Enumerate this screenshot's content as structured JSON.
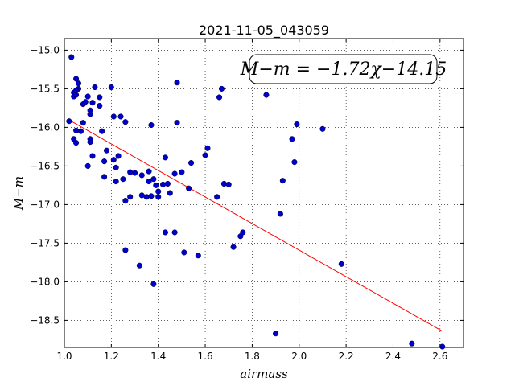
{
  "chart_data": {
    "type": "scatter",
    "title": "2021-11-05_043059",
    "xlabel": "airmass",
    "ylabel": "M−m",
    "xlim": [
      1.0,
      2.7
    ],
    "ylim": [
      -18.85,
      -14.85
    ],
    "xticks": [
      1.0,
      1.2,
      1.4,
      1.6,
      1.8,
      2.0,
      2.2,
      2.4,
      2.6
    ],
    "xtick_labels": [
      "1.0",
      "1.2",
      "1.4",
      "1.6",
      "1.8",
      "2.0",
      "2.2",
      "2.4",
      "2.6"
    ],
    "yticks": [
      -15.0,
      -15.5,
      -16.0,
      -16.5,
      -17.0,
      -17.5,
      -18.0,
      -18.5
    ],
    "ytick_labels": [
      "−15.0",
      "−15.5",
      "−16.0",
      "−16.5",
      "−17.0",
      "−17.5",
      "−18.0",
      "−18.5"
    ],
    "grid": true,
    "annotation": "M−m = −1.72χ−14.15",
    "point_color": "#0000cc",
    "fit_color": "#ff0000",
    "fit": {
      "slope": -1.72,
      "intercept": -14.15,
      "x_range": [
        1.02,
        2.61
      ]
    },
    "points": [
      [
        1.02,
        -15.92
      ],
      [
        1.03,
        -15.09
      ],
      [
        1.04,
        -15.55
      ],
      [
        1.04,
        -15.6
      ],
      [
        1.05,
        -15.58
      ],
      [
        1.05,
        -15.37
      ],
      [
        1.06,
        -15.43
      ],
      [
        1.06,
        -15.5
      ],
      [
        1.05,
        -15.52
      ],
      [
        1.05,
        -16.04
      ],
      [
        1.04,
        -16.15
      ],
      [
        1.05,
        -16.2
      ],
      [
        1.07,
        -16.05
      ],
      [
        1.08,
        -15.94
      ],
      [
        1.08,
        -15.7
      ],
      [
        1.09,
        -15.67
      ],
      [
        1.1,
        -15.6
      ],
      [
        1.11,
        -15.78
      ],
      [
        1.11,
        -15.83
      ],
      [
        1.12,
        -15.68
      ],
      [
        1.13,
        -15.48
      ],
      [
        1.15,
        -15.72
      ],
      [
        1.15,
        -15.61
      ],
      [
        1.16,
        -16.05
      ],
      [
        1.11,
        -16.15
      ],
      [
        1.11,
        -16.19
      ],
      [
        1.12,
        -16.37
      ],
      [
        1.1,
        -16.5
      ],
      [
        1.18,
        -16.3
      ],
      [
        1.17,
        -16.44
      ],
      [
        1.17,
        -16.64
      ],
      [
        1.2,
        -15.48
      ],
      [
        1.21,
        -15.86
      ],
      [
        1.24,
        -15.86
      ],
      [
        1.26,
        -15.93
      ],
      [
        1.21,
        -16.42
      ],
      [
        1.22,
        -16.52
      ],
      [
        1.23,
        -16.37
      ],
      [
        1.22,
        -16.7
      ],
      [
        1.25,
        -16.67
      ],
      [
        1.28,
        -16.58
      ],
      [
        1.3,
        -16.59
      ],
      [
        1.33,
        -16.62
      ],
      [
        1.36,
        -16.57
      ],
      [
        1.26,
        -16.95
      ],
      [
        1.28,
        -16.9
      ],
      [
        1.33,
        -16.88
      ],
      [
        1.35,
        -16.9
      ],
      [
        1.37,
        -16.89
      ],
      [
        1.36,
        -16.7
      ],
      [
        1.38,
        -16.67
      ],
      [
        1.39,
        -16.75
      ],
      [
        1.4,
        -16.9
      ],
      [
        1.4,
        -16.83
      ],
      [
        1.42,
        -16.74
      ],
      [
        1.44,
        -16.73
      ],
      [
        1.45,
        -16.85
      ],
      [
        1.47,
        -16.6
      ],
      [
        1.5,
        -16.58
      ],
      [
        1.43,
        -16.39
      ],
      [
        1.48,
        -15.42
      ],
      [
        1.48,
        -15.94
      ],
      [
        1.37,
        -15.97
      ],
      [
        1.26,
        -17.59
      ],
      [
        1.32,
        -17.79
      ],
      [
        1.38,
        -18.03
      ],
      [
        1.43,
        -17.36
      ],
      [
        1.47,
        -17.36
      ],
      [
        1.51,
        -17.62
      ],
      [
        1.53,
        -16.79
      ],
      [
        1.54,
        -16.46
      ],
      [
        1.57,
        -17.66
      ],
      [
        1.6,
        -16.36
      ],
      [
        1.61,
        -16.27
      ],
      [
        1.65,
        -16.9
      ],
      [
        1.68,
        -16.73
      ],
      [
        1.7,
        -16.74
      ],
      [
        1.72,
        -17.55
      ],
      [
        1.75,
        -17.41
      ],
      [
        1.76,
        -17.36
      ],
      [
        1.66,
        -15.61
      ],
      [
        1.67,
        -15.5
      ],
      [
        1.86,
        -15.58
      ],
      [
        1.9,
        -18.67
      ],
      [
        1.92,
        -17.12
      ],
      [
        1.93,
        -16.69
      ],
      [
        1.97,
        -16.15
      ],
      [
        1.98,
        -16.45
      ],
      [
        1.99,
        -15.96
      ],
      [
        2.1,
        -16.02
      ],
      [
        2.18,
        -17.77
      ],
      [
        2.48,
        -18.8
      ],
      [
        2.61,
        -18.84
      ]
    ]
  }
}
